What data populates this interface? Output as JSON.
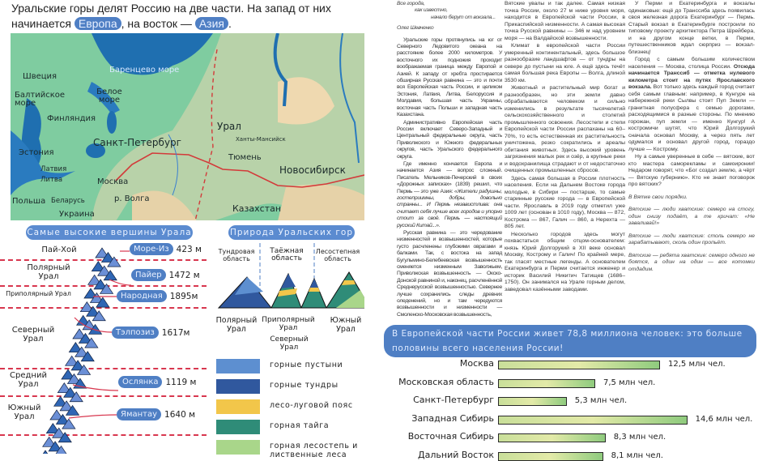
{
  "intro": {
    "line1": "Уральские горы делят Россию на две части. На запад от них",
    "line2_pre": "начинается",
    "europe": "Европа",
    "line2_mid": ", на восток —",
    "asia": "Азия",
    "line2_post": "."
  },
  "map": {
    "labels": [
      "Баренцево море",
      "Белое море",
      "Швеция",
      "Балтийское море",
      "Финляндия",
      "Эстония",
      "Латвия",
      "Литва",
      "Польша",
      "Беларусь",
      "Украина",
      "Санкт-Петербург",
      "Москва",
      "р. Волга",
      "Урал",
      "Ханты-Мансийск",
      "Тюмень",
      "Новосибирск",
      "Казахстан"
    ]
  },
  "peaks": {
    "title": "Самые высокие вершины Урала",
    "regions": [
      "Пай-Хой",
      "Полярный Урал",
      "Приполярный Урал",
      "Северный Урал",
      "Средний Урал",
      "Южный Урал"
    ],
    "items": [
      {
        "name": "Море-Из",
        "height": "423 м"
      },
      {
        "name": "Пайер",
        "height": "1472 м"
      },
      {
        "name": "Народная",
        "height": "1895м"
      },
      {
        "name": "Тэлпозиз",
        "height": "1617м"
      },
      {
        "name": "Ослянка",
        "height": "1119 м"
      },
      {
        "name": "Ямантау",
        "height": "1640 м"
      }
    ]
  },
  "nature": {
    "title": "Природа Уральских гор",
    "zones": [
      "Тундровая область",
      "Таёжная область",
      "Лесостепная область"
    ],
    "mountain_labels": [
      "Полярный Урал",
      "Приполярный Урал",
      "Северный Урал",
      "Южный Урал"
    ],
    "legend": [
      {
        "label": "горные пустыни",
        "color": "#5d8fd0"
      },
      {
        "label": "горные тундры",
        "color": "#30589e"
      },
      {
        "label": "лесо-луговой пояс",
        "color": "#f2c64a"
      },
      {
        "label": "горная тайга",
        "color": "#2f8c78"
      },
      {
        "label": "горная лесостепь и лиственные леса",
        "color": "#a9d68a"
      }
    ]
  },
  "article": {
    "epigraph": [
      "Все города,",
      "как известно,",
      "начало берут от вокзала..."
    ],
    "author": "Олег Шевченко",
    "col1": [
      "Уральские горы протянулись на юг от Северного Ледовитого океана на расстояние более 2000 километров. У восточного их подножия проходит воображаемая граница между Европой и Азией. К западу от хребта простирается обширная Русская равнина — это и почти вся Европейская часть России, и целиком Эстония, Латвия, Литва, Белоруссия и Молдавия, большая часть Украины, восточная часть Польши и западная часть Казахстана.",
      "Административно Европейская часть России включает Северо-Западный и Центральный федеральные округа, часть Приволжского и Южного федеральных округов, часть Уральского федерального округа."
    ],
    "p3_plain": "Где именно кончается Европа и начинается Азия — вопрос сложный. Писатель Мельников-Печерский в своих «Дорожных записках» (1839) решил, что Пермь — это уже Азия: ",
    "p3_italic": "«Жители радушны, гостеприимны, добры, довольно странны... И Пермь независтлива: она считает себя лучше всех городов и упорно стоит за своё. Пермь — настоящий русский Китай...».",
    "p4": "Русская равнина — это чередование низменностей и возвышенностей, которые густо расчленены глубокими оврагами и балками. Так, с востока на запад Бугульмино-Белебеевская возвышенность сменяется низменным Заволжьем, Приволжская возвышенность — Окско-Донской равниной и, наконец, расчленённой Среднерусской возвышенностью. Севернее лучше сохранились следы древних оледенений, но и там чередуются возвышенности и низменности — Смоленско-Московская возвышенность,",
    "col2": [
      "Вятские увалы и так далее. Самая низкая точка России, около 27 м ниже уровня моря, находится в Европейской части России, в Прикаспийской низменности. А самая высокая точка Русской равнины — 346 м над уровнем моря — на Валдайской возвышенности.",
      "Климат в европейской части России умеренный континентальный, здесь большое разнообразие ландшафтов — от тундры на севере до пустыни на юге. А ещё здесь течёт самая большая река Европы — Волга, длиной 3530 км.",
      "Животный и растительный мир богат и разнообразен, но эти земли давно обрабатываются человеком и сильно изменились в результате тысячелетий сельскохозяйственного и столетий промышленного освоения. Лесостепи и степи Европейской части России распаханы на 60–70%, то есть естественная их растительность уничтожена, резко сократились и ареалы обитания животных. Здесь высокий уровень загрязнения малых рек и озёр, а крупные реки и водохранилища страдают и от недостаточно очищенных промышленных сбросов.",
      "Здесь самая большая в России плотность населения. Если на Дальнем Востоке города молодые, в Сибири — постарше, то самые старинные русские города — в Европейской части. Ярославль в 2019 году отметил уже 1009 лет (основан в 1010 году), Москва — 872, Кострома — 867, Галич — 860, а Нерехта — 805 лет.",
      "Несколько городов здесь могут похвастаться общим отцом-основателем: князь Юрий Долгорукий в XII веке основал Москву, Кострому и Галич! По крайней мере, так гласят местные легенды. А основателем Екатеринбурга и Перми считается инженер и историк Василий Никитич Татищев (1686–1750). Он занимался на Урале горным делом, заведовал казёнными заводами."
    ],
    "col3_p1": "У Перми и Екатеринбурга и вокзалы одинаковые: ещё до Транссиба здесь появилась своя железная дорога Екатеринбург — Пермь. Старый вокзал в Екатеринбурге построили по типовому проекту архитектора Петра Шрейбера, и на другом конце ветки, в Перми, путешественников ждал сюрприз — вокзал-близнец!",
    "col3_p2a": "Город с самым большим количеством населения — Москва, столица России. ",
    "col3_p2b": "Отсюда начинается Транссиб — отметка нулевого километра стоит на путях Ярославского вокзала.",
    "col3_p2c": " Вот только здесь каждый город считает себя самым главным: например, в Кунгуре на набережной реки Сылвы стоит Пуп Земли — гранитная полусфера с семью дорогами, расходящимися в разные стороны. По мнению горожан, пуп земли — именно Кунгур! А костромичи шутят, что Юрий Долгорукий сначала основал Москву, а через пять лет одумался и основал другой город, гораздо лучше — Кострому.",
    "col3_p3": "Ну а самые уверенные в себе — вятские, вот кто мастера саморекламы и самоиронии! Недаром говорят, что «Бог создал землю, а чёрт — Вятскую губернию». Кто не знает поговорок про вятских?",
    "sayings": [
      "В Вятке свои порядки.",
      "Вятские — люди хватские: семеро на стогу, один снизу подаёт, а те кричат: «Не заваливай!»",
      "Вятские — люди хватские: столь семеро не зарабатывают, сколь один пропьёт.",
      "Вятские — ребята хватские: семеро одного не боятся, а один на один — все котомки отдадим."
    ]
  },
  "chart_data": {
    "type": "bar",
    "orientation": "horizontal",
    "title": "В Европейской части России живет 78,8 миллиона человек: это больше половины всего населения России!",
    "categories": [
      "Москва",
      "Московская область",
      "Санкт-Петербург",
      "Западная Сибирь",
      "Восточная Сибирь",
      "Дальний Восток"
    ],
    "values": [
      12.5,
      7.5,
      5.3,
      14.6,
      8.3,
      8.1
    ],
    "value_labels": [
      "12,5 млн чел.",
      "7,5 млн чел.",
      "5,3 млн чел.",
      "14,6 млн чел.",
      "8,3 млн чел.",
      "8,1 млн чел."
    ],
    "unit": "млн чел.",
    "bar_color": "#a9d68a"
  }
}
